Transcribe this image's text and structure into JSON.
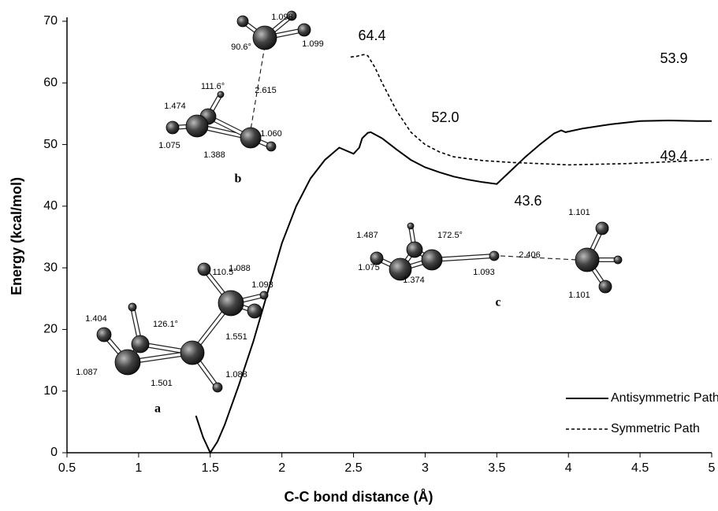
{
  "chart_data": {
    "type": "line",
    "x_label": "C-C bond distance (Å)",
    "y_label": "Energy (kcal/mol)",
    "xlim": [
      0.5,
      5
    ],
    "xticks": [
      0.5,
      1,
      1.5,
      2,
      2.5,
      3,
      3.5,
      4,
      4.5,
      5
    ],
    "ylim": [
      0,
      70
    ],
    "yticks": [
      0,
      10,
      20,
      30,
      40,
      50,
      60,
      70
    ],
    "legend": "lower right",
    "series": [
      {
        "name": "Antisymmetric Path",
        "color": "#000000",
        "dash": "solid",
        "x": [
          1.4,
          1.45,
          1.5,
          1.55,
          1.6,
          1.7,
          1.8,
          1.9,
          2.0,
          2.1,
          2.2,
          2.3,
          2.4,
          2.5,
          2.54,
          2.56,
          2.6,
          2.62,
          2.7,
          2.8,
          2.9,
          3.0,
          3.1,
          3.2,
          3.3,
          3.4,
          3.5,
          3.6,
          3.7,
          3.8,
          3.9,
          3.95,
          3.98,
          4.1,
          4.3,
          4.5,
          4.7,
          4.9,
          5.0
        ],
        "values": [
          6,
          2.5,
          0,
          1.8,
          4.5,
          11,
          18,
          26,
          34,
          40,
          44.5,
          47.5,
          49.5,
          48.5,
          49.5,
          51,
          51.9,
          52.0,
          51,
          49.2,
          47.5,
          46.3,
          45.5,
          44.8,
          44.3,
          43.9,
          43.6,
          45.8,
          48,
          50,
          51.8,
          52.3,
          52,
          52.6,
          53.3,
          53.8,
          53.9,
          53.8,
          53.8
        ]
      },
      {
        "name": "Symmetric Path",
        "color": "#000000",
        "dash": "dotted",
        "x": [
          2.48,
          2.52,
          2.57,
          2.6,
          2.65,
          2.7,
          2.8,
          2.9,
          3.0,
          3.1,
          3.2,
          3.4,
          3.6,
          3.8,
          4.0,
          4.2,
          4.4,
          4.6,
          4.8,
          5.0
        ],
        "values": [
          64.2,
          64.3,
          64.6,
          64.4,
          62.5,
          60,
          55.5,
          52,
          50,
          48.8,
          48,
          47.4,
          47.1,
          46.9,
          46.7,
          46.8,
          46.9,
          47.1,
          47.3,
          47.6
        ]
      }
    ],
    "annotations": [
      "64.4",
      "52.0",
      "43.6",
      "53.9",
      "49.4"
    ],
    "insets": [
      {
        "label": "a",
        "measurements": [
          "1.404",
          "126.1°",
          "110.5°",
          "1.088",
          "1.093",
          "1.551",
          "1.087",
          "1.501",
          "1.088"
        ]
      },
      {
        "label": "b",
        "measurements": [
          "1.098",
          "1.099",
          "90.6°",
          "2.615",
          "111.6°",
          "1.474",
          "1.060",
          "1.075",
          "1.388"
        ]
      },
      {
        "label": "c",
        "measurements": [
          "1.487",
          "172.5°",
          "2.406",
          "1.101",
          "1.101",
          "1.075",
          "1.374",
          "1.093"
        ]
      }
    ]
  }
}
